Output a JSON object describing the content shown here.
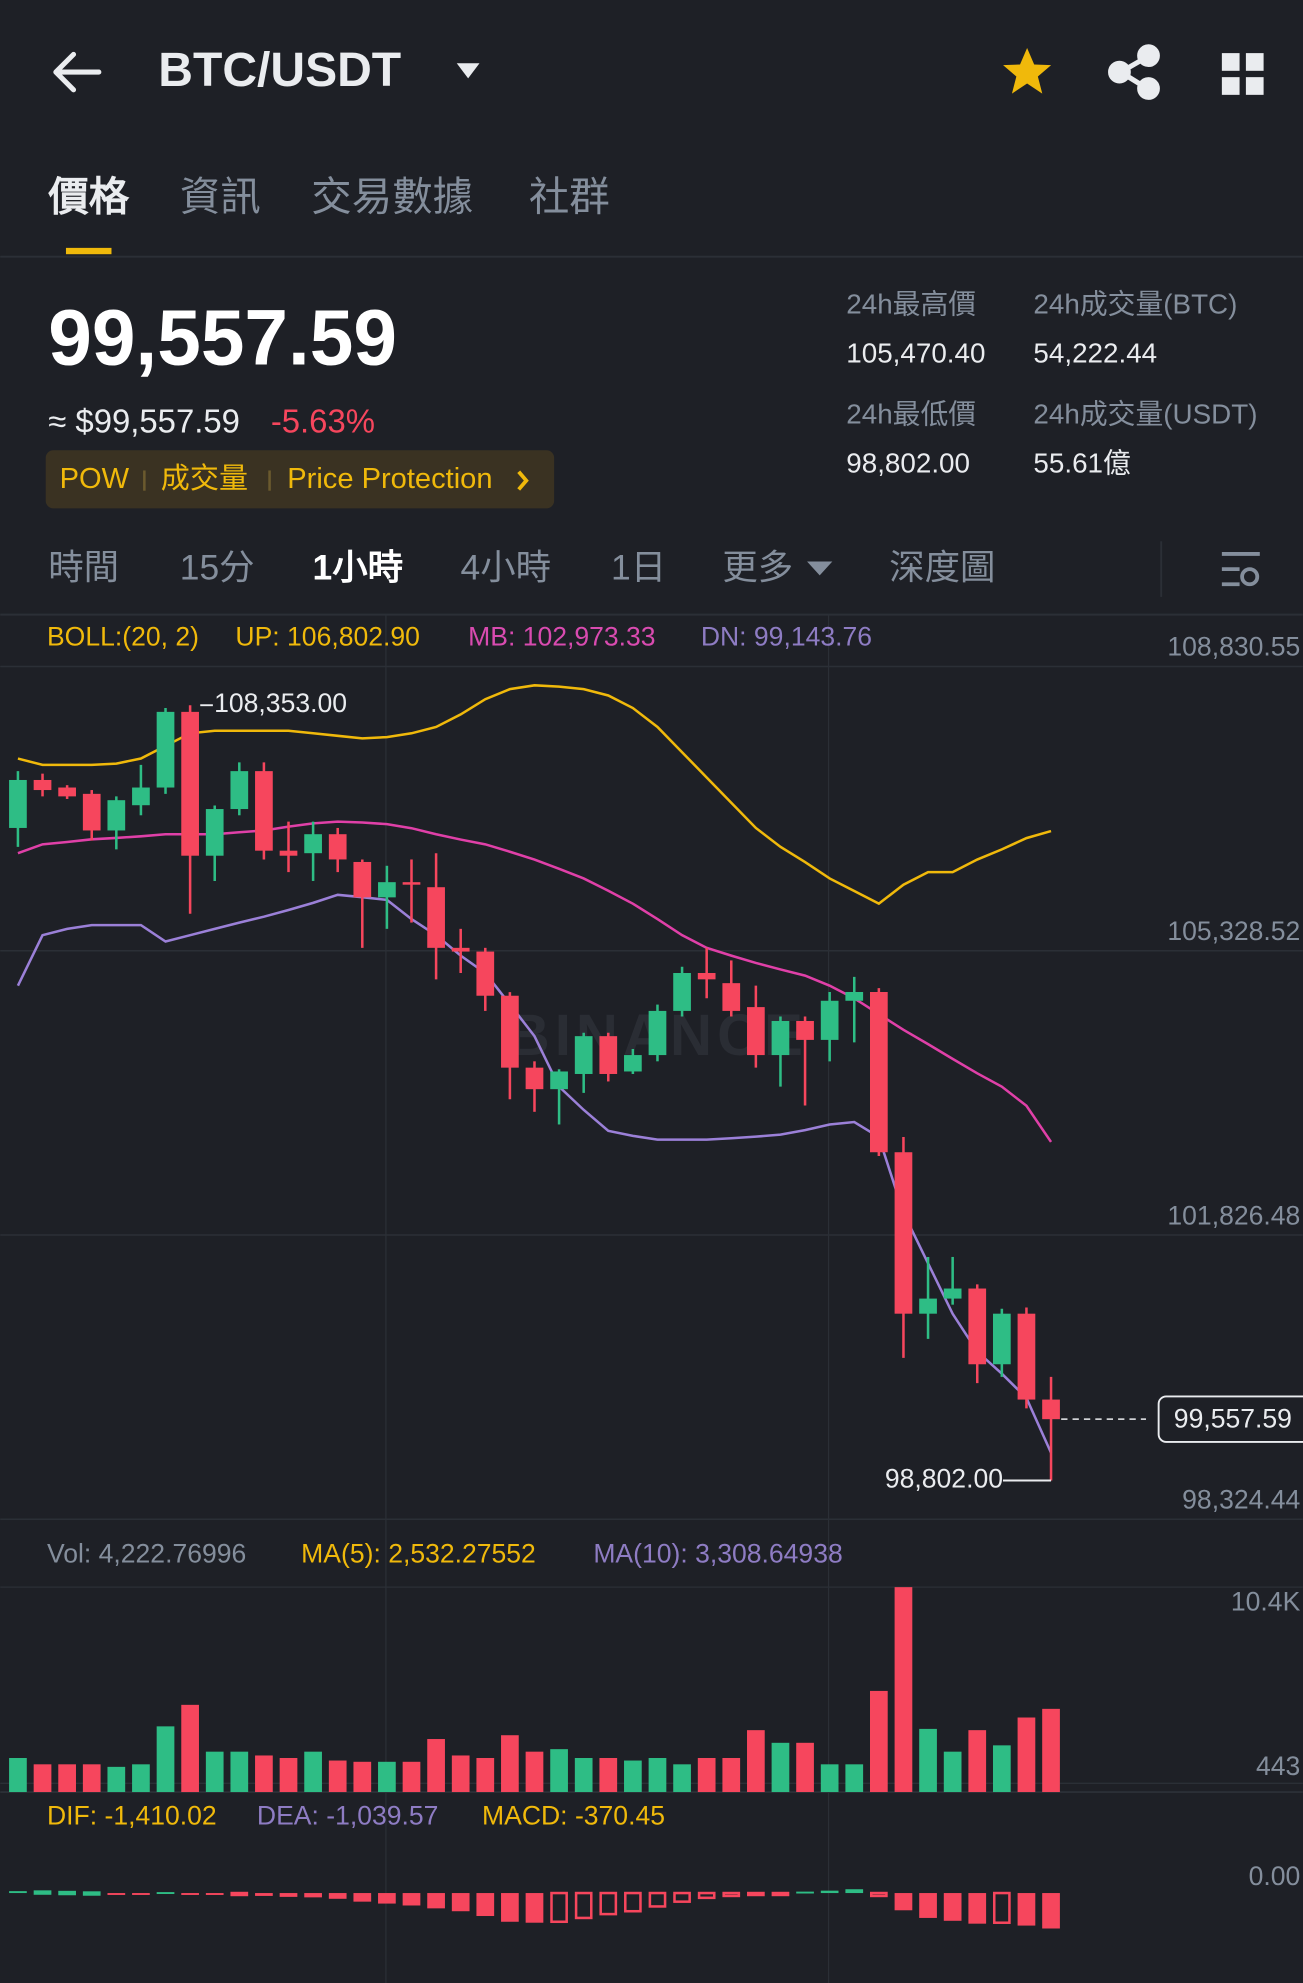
{
  "header": {
    "title": "BTC/USDT"
  },
  "tabs": [
    "價格",
    "資訊",
    "交易數據",
    "社群"
  ],
  "price": {
    "last": "99,557.59",
    "approx": "≈ $99,557.59",
    "change": "-5.63%"
  },
  "tags": [
    "POW",
    "成交量",
    "Price Protection"
  ],
  "stats": [
    {
      "label": "24h最高價",
      "value": "105,470.40"
    },
    {
      "label": "24h成交量(BTC)",
      "value": "54,222.44"
    },
    {
      "label": "24h最低價",
      "value": "98,802.00"
    },
    {
      "label": "24h成交量(USDT)",
      "value": "55.61億"
    }
  ],
  "intervals": [
    "時間",
    "15分",
    "1小時",
    "4小時",
    "1日",
    "更多",
    "深度圖"
  ],
  "chart_data": {
    "type": "candlestick",
    "watermark": "BINANCE",
    "up_color": "#2ebd85",
    "down_color": "#f6465d",
    "ylim": [
      98267,
      109469
    ],
    "yticks": [
      {
        "value": 108830.55,
        "label": "108,830.55"
      },
      {
        "value": 105328.52,
        "label": "105,328.52"
      },
      {
        "value": 101826.48,
        "label": "101,826.48"
      },
      {
        "value": 98324.44,
        "label": "98,324.44"
      }
    ],
    "grid": true,
    "ohlc": [
      [
        106841,
        107541,
        106608,
        107432
      ],
      [
        107432,
        107510,
        107230,
        107308
      ],
      [
        107339,
        107368,
        107198,
        107230
      ],
      [
        107261,
        107308,
        106686,
        106810
      ],
      [
        106810,
        107230,
        106577,
        107183
      ],
      [
        107121,
        107618,
        106997,
        107339
      ],
      [
        107339,
        108318,
        107261,
        108271
      ],
      [
        108271,
        108353,
        105784,
        106499
      ],
      [
        106499,
        107118,
        106188,
        107074
      ],
      [
        107074,
        107649,
        106997,
        107541
      ],
      [
        107541,
        107649,
        106453,
        106561
      ],
      [
        106561,
        106919,
        106297,
        106499
      ],
      [
        106530,
        106919,
        106188,
        106764
      ],
      [
        106764,
        106841,
        106297,
        106453
      ],
      [
        106422,
        106453,
        105364,
        105986
      ],
      [
        105986,
        106375,
        105598,
        106173
      ],
      [
        106173,
        106453,
        105675,
        106142
      ],
      [
        106111,
        106530,
        104976,
        105364
      ],
      [
        105364,
        105598,
        105054,
        105318
      ],
      [
        105318,
        105364,
        104587,
        104774
      ],
      [
        104774,
        104818,
        103499,
        103888
      ],
      [
        103888,
        103966,
        103344,
        103623
      ],
      [
        103623,
        103868,
        103188,
        103841
      ],
      [
        103810,
        104318,
        103577,
        104276
      ],
      [
        104276,
        104318,
        103718,
        103810
      ],
      [
        103841,
        104118,
        103810,
        104043
      ],
      [
        104043,
        104665,
        103966,
        104587
      ],
      [
        104587,
        105131,
        104518,
        105054
      ],
      [
        105054,
        105364,
        104743,
        104976
      ],
      [
        104929,
        105209,
        104518,
        104587
      ],
      [
        104634,
        104898,
        103888,
        104043
      ],
      [
        104043,
        104518,
        103655,
        104463
      ],
      [
        104463,
        104518,
        103421,
        104230
      ],
      [
        104230,
        104820,
        103966,
        104712
      ],
      [
        104712,
        105007,
        104199,
        104820
      ],
      [
        104820,
        104868,
        102800,
        102846
      ],
      [
        102846,
        103033,
        100312,
        100857
      ],
      [
        100857,
        101556,
        100546,
        101043
      ],
      [
        101043,
        101556,
        100968,
        101167
      ],
      [
        101167,
        101218,
        100001,
        100234
      ],
      [
        100234,
        100918,
        100079,
        100857
      ],
      [
        100857,
        100934,
        99690,
        99799
      ],
      [
        99799,
        100079,
        98802,
        99557.59
      ]
    ],
    "high_label": "108,353.00",
    "low_label": "98,802.00",
    "last_label": "99,557.59",
    "boll": {
      "legend": [
        "BOLL:(20, 2)",
        "UP: 106,802.90",
        "MB: 102,973.33",
        "DN: 99,143.76"
      ],
      "legend_colors": [
        "#f0b90b",
        "#f0b90b",
        "#d94bb0",
        "#8e7cc3"
      ],
      "lines": [
        {
          "color": "#f0b90b",
          "values": [
            107696,
            107618,
            107618,
            107618,
            107634,
            107696,
            107852,
            108007,
            108038,
            108038,
            108038,
            108038,
            108007,
            107976,
            107945,
            107960,
            108007,
            108085,
            108240,
            108427,
            108551,
            108598,
            108582,
            108551,
            108473,
            108318,
            108085,
            107774,
            107463,
            107152,
            106841,
            106608,
            106421,
            106219,
            106064,
            105908,
            106142,
            106297,
            106297,
            106452,
            106577,
            106716,
            106802.9
          ]
        },
        {
          "color": "#e040a8",
          "values": [
            106530,
            106639,
            106668,
            106701,
            106718,
            106738,
            106763,
            106763,
            106763,
            106788,
            106810,
            106858,
            106898,
            106919,
            106908,
            106888,
            106838,
            106763,
            106698,
            106639,
            106548,
            106452,
            106338,
            106219,
            106068,
            105908,
            105718,
            105520,
            105364,
            105268,
            105178,
            105098,
            105022,
            104898,
            104742,
            104548,
            104354,
            104178,
            103996,
            103818,
            103654,
            103418,
            102973.33
          ]
        },
        {
          "color": "#9b80d8",
          "values": [
            104898,
            105520,
            105598,
            105644,
            105644,
            105644,
            105442,
            105520,
            105598,
            105675,
            105748,
            105830,
            105918,
            106017,
            105988,
            105955,
            105718,
            105520,
            105268,
            105053,
            104668,
            104276,
            103654,
            103368,
            103110,
            103048,
            103001,
            103001,
            103001,
            103018,
            103038,
            103063,
            103118,
            103188,
            103218,
            103033,
            102100,
            101478,
            100856,
            100390,
            100118,
            99818,
            99143.76
          ]
        }
      ]
    },
    "volume": {
      "legend": [
        "Vol: 4,222.76996",
        "MA(5): 2,532.27552",
        "MA(10): 3,308.64938"
      ],
      "legend_colors": [
        "#848e9c",
        "#f0b90b",
        "#8e7cc3"
      ],
      "ylim": [
        0,
        13289
      ],
      "yticks": [
        {
          "value": 10400,
          "label": "10.4K"
        },
        443
      ],
      "values": [
        1728,
        1407,
        1407,
        1407,
        1278,
        1407,
        3334,
        4426,
        2049,
        2049,
        1856,
        1728,
        2049,
        1599,
        1535,
        1535,
        1535,
        2691,
        1856,
        1728,
        2884,
        2049,
        2177,
        1728,
        1728,
        1599,
        1728,
        1407,
        1728,
        1728,
        3141,
        2499,
        2499,
        1407,
        1407,
        5133,
        10400,
        3205,
        2049,
        3141,
        2370,
        3783,
        4222.76996
      ]
    },
    "macd": {
      "legend": [
        "DIF: -1,410.02",
        "DEA: -1,039.57",
        "MACD: -370.45"
      ],
      "legend_colors": [
        "#f0b90b",
        "#8e7cc3",
        "#f0b90b"
      ],
      "ylim": [
        -940,
        1016
      ],
      "yticks": [
        {
          "value": 0,
          "label": "0.00"
        }
      ],
      "values": [
        20,
        15,
        10,
        5,
        -5,
        -8,
        10,
        -15,
        -20,
        -10,
        -30,
        -40,
        -45,
        -60,
        -90,
        -110,
        -130,
        -160,
        -190,
        -240,
        -300,
        -310,
        -300,
        -260,
        -220,
        -190,
        -140,
        -90,
        -50,
        -30,
        -20,
        -10,
        15,
        25,
        40,
        -30,
        -180,
        -260,
        -290,
        -320,
        -310,
        -340,
        -370.45
      ]
    }
  }
}
